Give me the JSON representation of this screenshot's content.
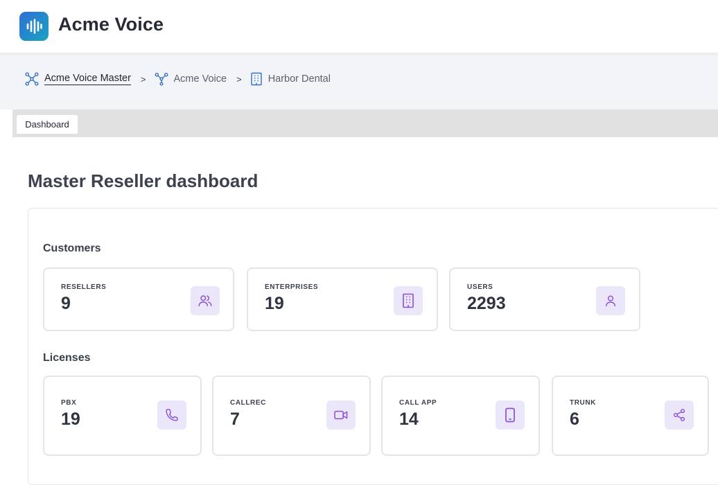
{
  "app": {
    "title": "Acme Voice"
  },
  "breadcrumb": [
    {
      "label": "Acme Voice Master",
      "icon": "network-nodes-icon"
    },
    {
      "label": "Acme Voice",
      "icon": "branch-icon"
    },
    {
      "label": "Harbor Dental",
      "icon": "building-icon"
    }
  ],
  "breadcrumb_separator": ">",
  "tabs": [
    {
      "label": "Dashboard"
    }
  ],
  "page": {
    "title": "Master Reseller dashboard"
  },
  "customers": {
    "label": "Customers",
    "cards": [
      {
        "label": "RESELLERS",
        "value": "9",
        "icon": "users-icon"
      },
      {
        "label": "ENTERPRISES",
        "value": "19",
        "icon": "building-icon"
      },
      {
        "label": "USERS",
        "value": "2293",
        "icon": "user-icon"
      }
    ]
  },
  "licenses": {
    "label": "Licenses",
    "cards": [
      {
        "label": "PBX",
        "value": "19",
        "icon": "phone-icon"
      },
      {
        "label": "CALLREC",
        "value": "7",
        "icon": "video-camera-icon"
      },
      {
        "label": "CALL APP",
        "value": "14",
        "icon": "smartphone-icon"
      },
      {
        "label": "TRUNK",
        "value": "6",
        "icon": "share-icon"
      }
    ]
  },
  "colors": {
    "accent_icon": "#8a4fd6",
    "icon_bg": "#ece6fb",
    "logo_gradient_start": "#2f6fd6",
    "logo_gradient_end": "#1aa3c0",
    "breadcrumb_icon": "#2f6fc9"
  }
}
